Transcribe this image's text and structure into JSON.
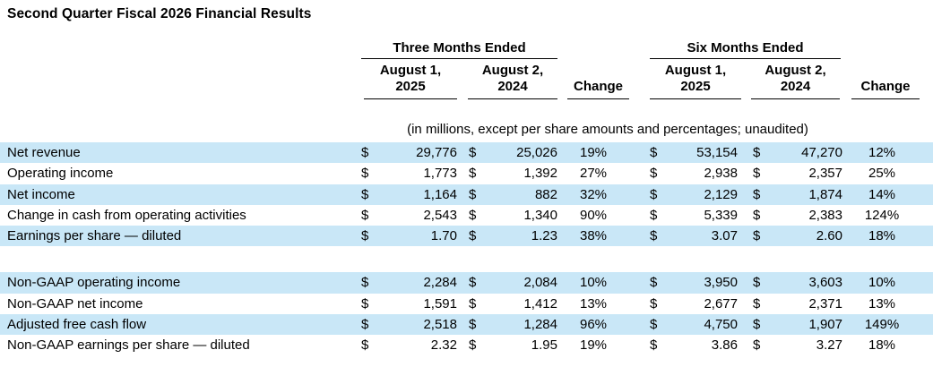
{
  "title": "Second Quarter Fiscal 2026 Financial Results",
  "currency_symbol": "$",
  "colors": {
    "row_stripe": "#c9e7f7",
    "text": "#000000",
    "rule": "#000000"
  },
  "table": {
    "group_headers": {
      "three_months": "Three Months Ended",
      "six_months": "Six Months Ended"
    },
    "column_headers": {
      "period1_line1": "August 1,",
      "period1_line2": "2025",
      "period2_line1": "August 2,",
      "period2_line2": "2024",
      "change": "Change"
    },
    "note": "(in millions, except per share amounts and percentages; unaudited)",
    "gaap_rows": [
      {
        "label": "Net revenue",
        "tm_2025": "29,776",
        "tm_2024": "25,026",
        "tm_change": "19%",
        "sm_2025": "53,154",
        "sm_2024": "47,270",
        "sm_change": "12%"
      },
      {
        "label": "Operating income",
        "tm_2025": "1,773",
        "tm_2024": "1,392",
        "tm_change": "27%",
        "sm_2025": "2,938",
        "sm_2024": "2,357",
        "sm_change": "25%"
      },
      {
        "label": "Net income",
        "tm_2025": "1,164",
        "tm_2024": "882",
        "tm_change": "32%",
        "sm_2025": "2,129",
        "sm_2024": "1,874",
        "sm_change": "14%"
      },
      {
        "label": "Change in cash from operating activities",
        "tm_2025": "2,543",
        "tm_2024": "1,340",
        "tm_change": "90%",
        "sm_2025": "5,339",
        "sm_2024": "2,383",
        "sm_change": "124%"
      },
      {
        "label": "Earnings per share — diluted",
        "tm_2025": "1.70",
        "tm_2024": "1.23",
        "tm_change": "38%",
        "sm_2025": "3.07",
        "sm_2024": "2.60",
        "sm_change": "18%"
      }
    ],
    "non_gaap_rows": [
      {
        "label": "Non-GAAP operating income",
        "tm_2025": "2,284",
        "tm_2024": "2,084",
        "tm_change": "10%",
        "sm_2025": "3,950",
        "sm_2024": "3,603",
        "sm_change": "10%"
      },
      {
        "label": "Non-GAAP net income",
        "tm_2025": "1,591",
        "tm_2024": "1,412",
        "tm_change": "13%",
        "sm_2025": "2,677",
        "sm_2024": "2,371",
        "sm_change": "13%"
      },
      {
        "label": "Adjusted free cash flow",
        "tm_2025": "2,518",
        "tm_2024": "1,284",
        "tm_change": "96%",
        "sm_2025": "4,750",
        "sm_2024": "1,907",
        "sm_change": "149%"
      },
      {
        "label": "Non-GAAP earnings per share — diluted",
        "tm_2025": "2.32",
        "tm_2024": "1.95",
        "tm_change": "19%",
        "sm_2025": "3.86",
        "sm_2024": "3.27",
        "sm_change": "18%"
      }
    ]
  }
}
